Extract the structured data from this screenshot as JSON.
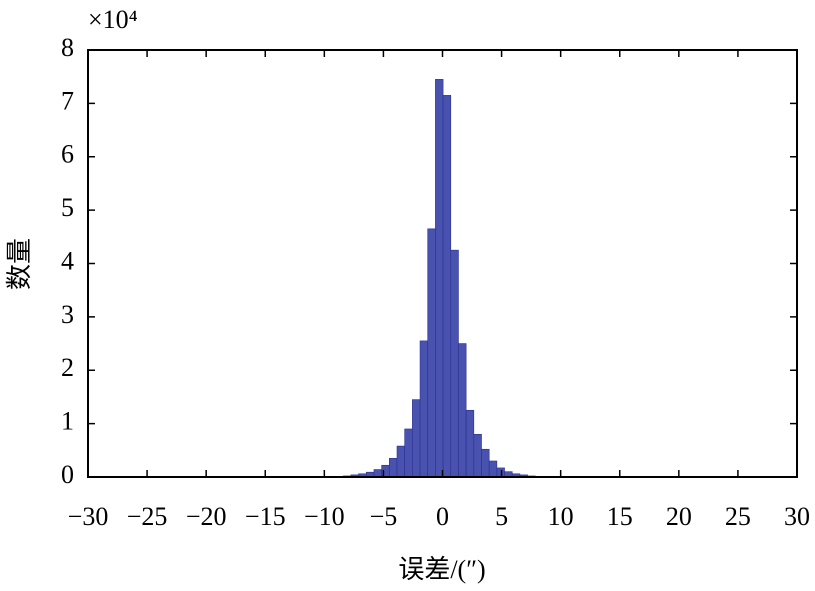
{
  "chart_data": {
    "type": "histogram",
    "x_label": "误差/(″)",
    "y_label": "数量",
    "y_multiplier": "×10⁴",
    "color": "#4a52b0",
    "edge_color": "#2a3090",
    "bins": [
      -8.4,
      -7.75,
      -7.1,
      -6.45,
      -5.8,
      -5.15,
      -4.5,
      -3.85,
      -3.2,
      -2.55,
      -1.9,
      -1.25,
      -0.6,
      0.05,
      0.7,
      1.35,
      2,
      2.65,
      3.3,
      3.95,
      4.6,
      5.25,
      5.9,
      6.55,
      7.2,
      7.85,
      8.5
    ],
    "values": [
      0.02,
      0.04,
      0.06,
      0.09,
      0.14,
      0.22,
      0.35,
      0.58,
      0.9,
      1.45,
      2.55,
      4.65,
      7.45,
      7.15,
      4.25,
      2.5,
      1.25,
      0.8,
      0.52,
      0.3,
      0.17,
      0.1,
      0.06,
      0.04,
      0.02,
      0.01
    ],
    "xlim": [
      -30,
      30
    ],
    "ylim": [
      0,
      8
    ],
    "xticks": [
      {
        "value": -30,
        "label": "−30"
      },
      {
        "value": -25,
        "label": "−25"
      },
      {
        "value": -20,
        "label": "−20"
      },
      {
        "value": -15,
        "label": "−15"
      },
      {
        "value": -10,
        "label": "−10"
      },
      {
        "value": -5,
        "label": "−5"
      },
      0,
      5,
      10,
      15,
      20,
      25,
      30
    ],
    "yticks": [
      0,
      1,
      2,
      3,
      4,
      5,
      6,
      7,
      8
    ]
  }
}
